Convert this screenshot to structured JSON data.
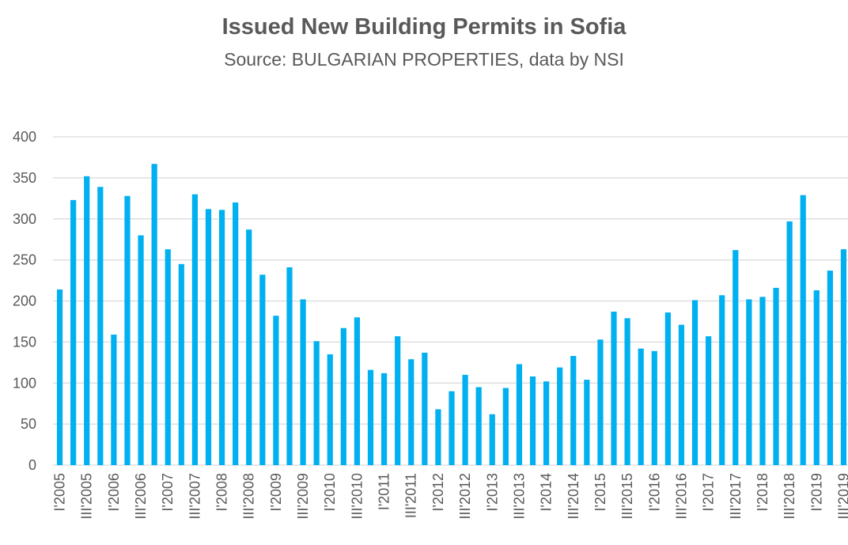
{
  "chart_data": {
    "type": "bar",
    "title": "Issued New Building Permits in Sofia",
    "subtitle": "Source: BULGARIAN PROPERTIES, data by NSI",
    "xlabel": "",
    "ylabel": "",
    "ylim": [
      0,
      400
    ],
    "yticks": [
      0,
      50,
      100,
      150,
      200,
      250,
      300,
      350,
      400
    ],
    "grid": true,
    "color": "#00B0F0",
    "categories": [
      "I'2005",
      "II'2005",
      "III'2005",
      "IV'2005",
      "I'2006",
      "II'2006",
      "III'2006",
      "IV'2006",
      "I'2007",
      "II'2007",
      "III'2007",
      "IV'2007",
      "I'2008",
      "II'2008",
      "III'2008",
      "IV'2008",
      "I'2009",
      "II'2009",
      "III'2009",
      "IV'2009",
      "I'2010",
      "II'2010",
      "III'2010",
      "IV'2010",
      "I'2011",
      "II'2011",
      "III'2011",
      "IV'2011",
      "I'2012",
      "II'2012",
      "III'2012",
      "IV'2012",
      "I'2013",
      "II'2013",
      "III'2013",
      "IV'2013",
      "I'2014",
      "II'2014",
      "III'2014",
      "IV'2014",
      "I'2015",
      "II'2015",
      "III'2015",
      "IV'2015",
      "I'2016",
      "II'2016",
      "III'2016",
      "IV'2016",
      "I'2017",
      "II'2017",
      "III'2017",
      "IV'2017",
      "I'2018",
      "II'2018",
      "III'2018",
      "IV'2018",
      "I'2019",
      "II'2019",
      "III'2019"
    ],
    "values": [
      214,
      323,
      352,
      339,
      159,
      328,
      280,
      367,
      263,
      245,
      330,
      312,
      311,
      320,
      287,
      232,
      182,
      241,
      202,
      151,
      135,
      167,
      180,
      116,
      112,
      157,
      129,
      137,
      68,
      90,
      110,
      95,
      62,
      94,
      123,
      108,
      102,
      119,
      133,
      104,
      153,
      187,
      179,
      142,
      139,
      186,
      171,
      201,
      157,
      207,
      262,
      202,
      205,
      216,
      297,
      329,
      213,
      237,
      263
    ],
    "x_tick_labels": [
      "I'2005",
      "III'2005",
      "I'2006",
      "III'2006",
      "I'2007",
      "III'2007",
      "I'2008",
      "III'2008",
      "I'2009",
      "III'2009",
      "I'2010",
      "III'2010",
      "I'2011",
      "III'2011",
      "I'2012",
      "III'2012",
      "I'2013",
      "III'2013",
      "I'2014",
      "III'2014",
      "I'2015",
      "III'2015",
      "I'2016",
      "III'2016",
      "I'2017",
      "III'2017",
      "I'2018",
      "III'2018",
      "I'2019",
      "III'2019"
    ]
  }
}
